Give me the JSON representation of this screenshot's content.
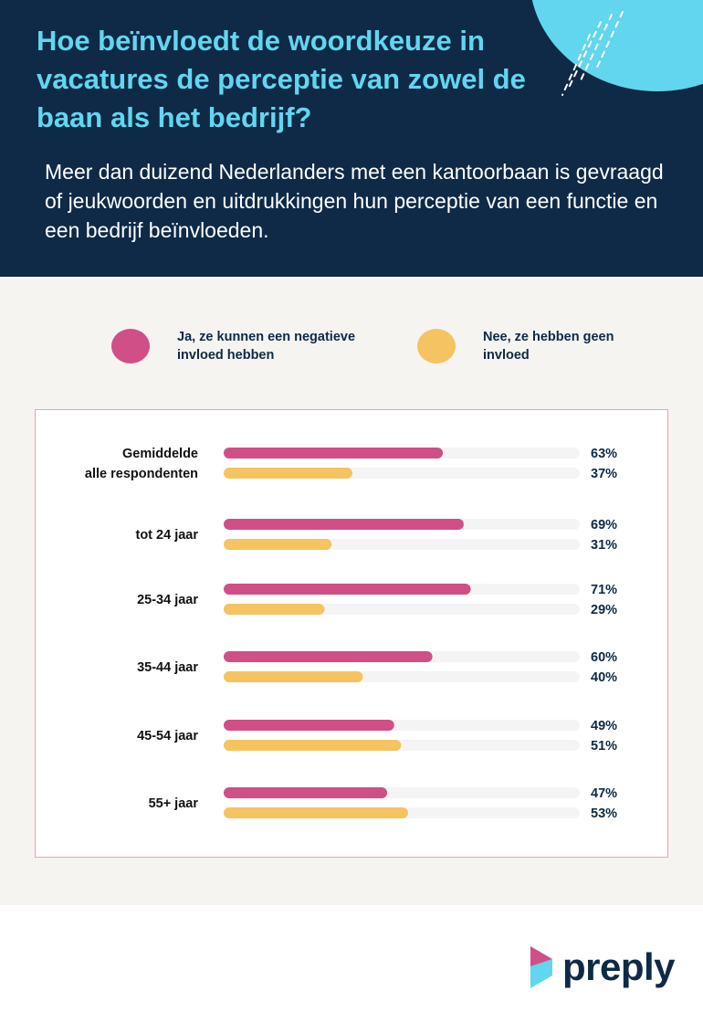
{
  "header": {
    "title": "Hoe beïnvloedt de woordkeuze in vacatures de perceptie van zowel de baan als het bedrijf?",
    "subtitle": "Meer dan duizend Nederlanders met een kantoorbaan is gevraagd of jeukwoorden en uitdrukkingen hun perceptie van een functie en een bedrijf beïnvloeden."
  },
  "legend": [
    {
      "label": "Ja, ze kunnen een negatieve invloed hebben",
      "color": "#cf4f86"
    },
    {
      "label": "Nee, ze hebben geen invloed",
      "color": "#f5c35f"
    }
  ],
  "colors": {
    "navy": "#0e2a47",
    "cyan": "#62d6ef",
    "track": "#f4f4f4",
    "pink": "#cf4f86",
    "yellow": "#f5c35f"
  },
  "chart_data": {
    "type": "bar",
    "orientation": "horizontal",
    "title": "",
    "categories": [
      "Gemiddelde alle respondenten",
      "tot 24 jaar",
      "25-34 jaar",
      "35-44 jaar",
      "45-54 jaar",
      "55+ jaar"
    ],
    "series": [
      {
        "name": "Ja, ze kunnen een negatieve invloed hebben",
        "values": [
          63,
          69,
          71,
          60,
          49,
          47
        ],
        "labels": [
          "63%",
          "69%",
          "71%",
          "60%",
          "49%",
          "47%"
        ]
      },
      {
        "name": "Nee, ze hebben geen invloed",
        "values": [
          37,
          31,
          29,
          40,
          51,
          53
        ],
        "labels": [
          "37%",
          "31%",
          "29%",
          "40%",
          "51%",
          "53%"
        ]
      }
    ],
    "xlim": [
      0,
      100
    ],
    "unit": "%",
    "grid": false
  },
  "brand": {
    "name": "preply"
  }
}
